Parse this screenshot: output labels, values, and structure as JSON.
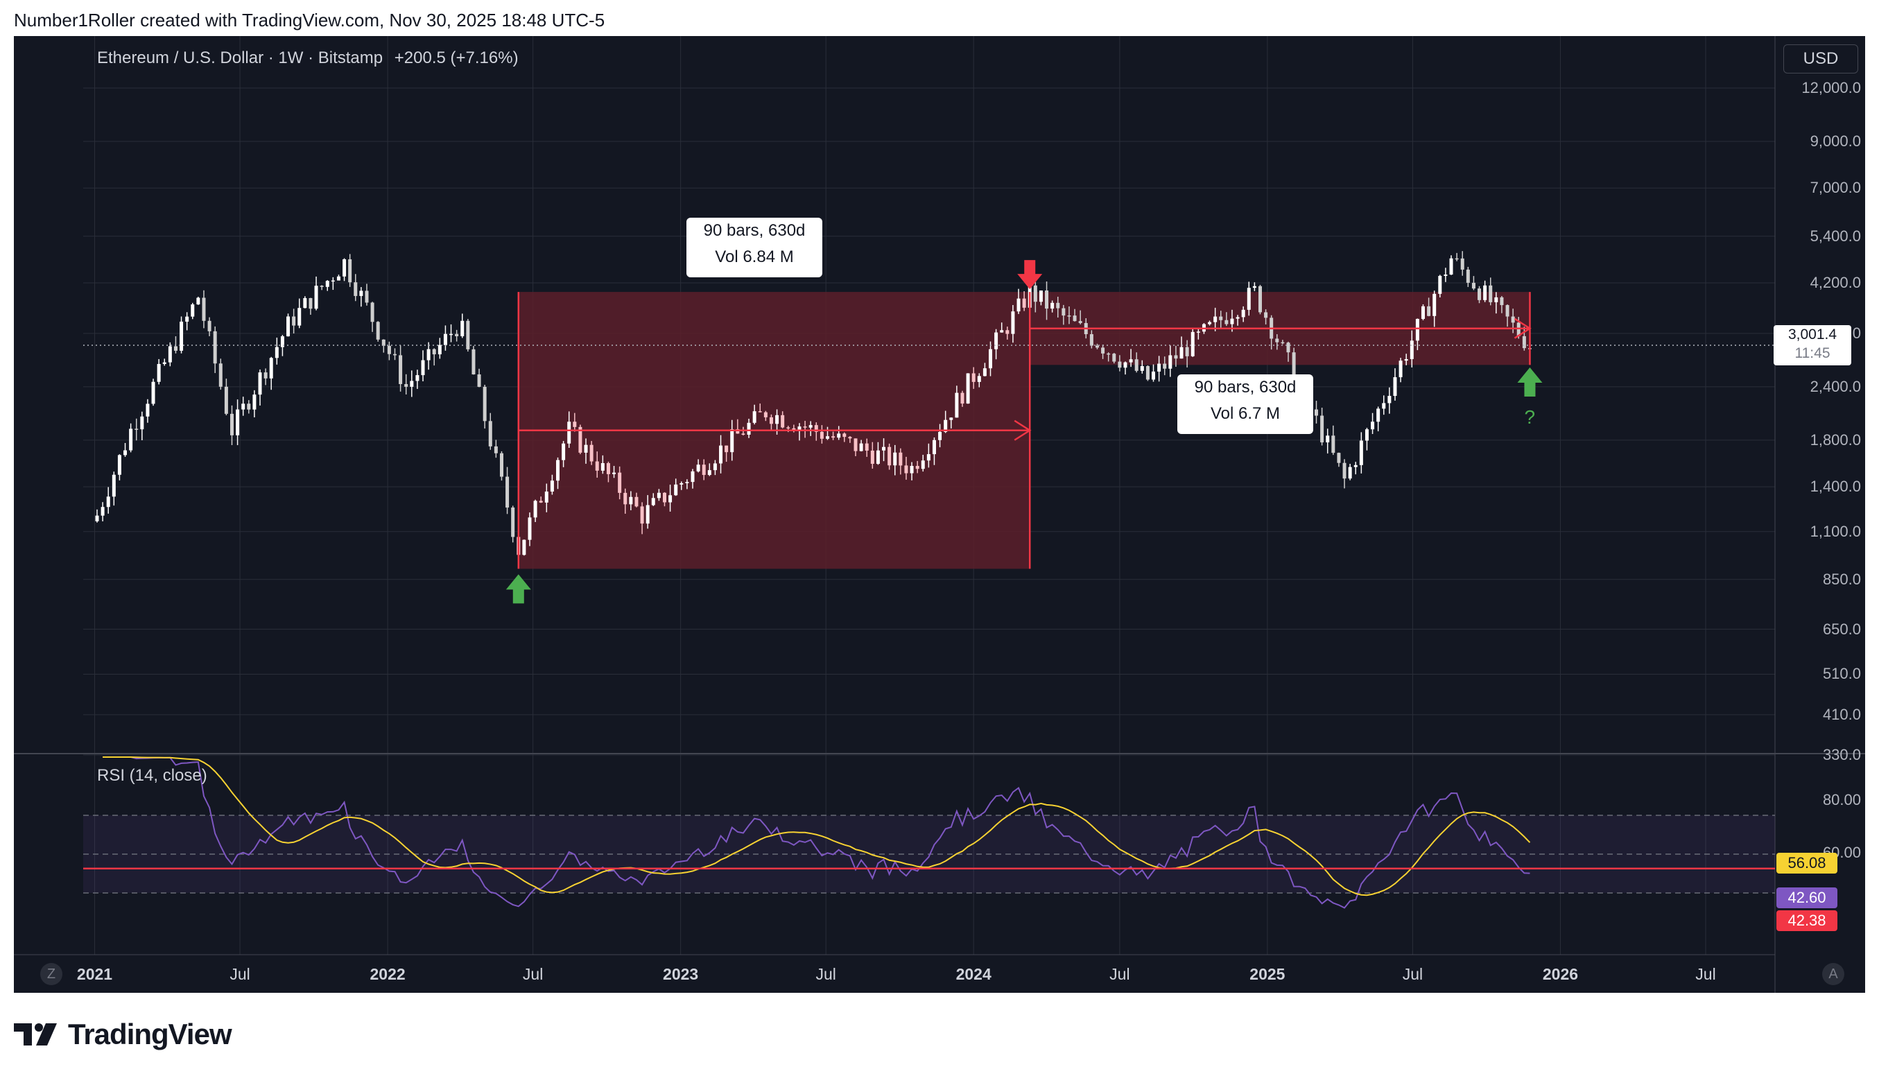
{
  "header": {
    "caption": "Number1Roller created with TradingView.com, Nov 30, 2025 18:48 UTC-5"
  },
  "legend": {
    "symbol": "Ethereum / U.S. Dollar · 1W · Bitstamp",
    "change": "+200.5 (+7.16%)"
  },
  "currency_button": "USD",
  "price_axis": [
    "12,000.0",
    "9,000.0",
    "7,000.0",
    "5,400.0",
    "4,200.0",
    "3,200.0",
    "2,400.0",
    "1,800.0",
    "1,400.0",
    "1,100.0",
    "850.0",
    "650.0",
    "510.0",
    "410.0",
    "330.0"
  ],
  "price_tag": {
    "price": "3,001.4",
    "countdown": "11:45"
  },
  "time_axis": [
    {
      "label": "2021",
      "bold": true
    },
    {
      "label": "Jul",
      "bold": false
    },
    {
      "label": "2022",
      "bold": true
    },
    {
      "label": "Jul",
      "bold": false
    },
    {
      "label": "2023",
      "bold": true
    },
    {
      "label": "Jul",
      "bold": false
    },
    {
      "label": "2024",
      "bold": true
    },
    {
      "label": "Jul",
      "bold": false
    },
    {
      "label": "2025",
      "bold": true
    },
    {
      "label": "Jul",
      "bold": false
    },
    {
      "label": "2026",
      "bold": true
    },
    {
      "label": "Jul",
      "bold": false
    }
  ],
  "measure_boxes": [
    {
      "bars": "90 bars, 630d",
      "vol": "Vol 6.84 M"
    },
    {
      "bars": "90 bars, 630d",
      "vol": "Vol 6.7 M"
    }
  ],
  "question_mark": "?",
  "rsi": {
    "label": "RSI (14, close)",
    "axis": [
      "80.00",
      "60.00"
    ],
    "tags": [
      {
        "value": "56.08",
        "color": "#f7d232",
        "text_color": "#131722"
      },
      {
        "value": "42.60",
        "color": "#7e57c2",
        "text_color": "#ffffff"
      },
      {
        "value": "42.38",
        "color": "#f23645",
        "text_color": "#ffffff"
      }
    ]
  },
  "bottom_buttons": {
    "left": "Z",
    "right": "A"
  },
  "colors": {
    "background": "#131722",
    "zone": "#5c1f2a",
    "red": "#f23645",
    "green": "#4caf50",
    "rsi_line": "#7e57c2",
    "rsi_ma": "#f7d232"
  },
  "branding": "TradingView",
  "chart_data": {
    "type": "candlestick",
    "title": "Ethereum / U.S. Dollar · 1W · Bitstamp",
    "y_scale": "log",
    "ylim": [
      330,
      12000
    ],
    "weekly_close_path": [
      {
        "date": "2021-01-04",
        "close": 1200
      },
      {
        "date": "2021-02-15",
        "close": 1900
      },
      {
        "date": "2021-05-10",
        "close": 3900
      },
      {
        "date": "2021-06-21",
        "close": 1900
      },
      {
        "date": "2021-09-01",
        "close": 3400
      },
      {
        "date": "2021-11-08",
        "close": 4700
      },
      {
        "date": "2022-01-24",
        "close": 2400
      },
      {
        "date": "2022-04-01",
        "close": 3400
      },
      {
        "date": "2022-06-13",
        "close": 1000
      },
      {
        "date": "2022-08-15",
        "close": 1900
      },
      {
        "date": "2022-11-14",
        "close": 1200
      },
      {
        "date": "2023-04-17",
        "close": 2100
      },
      {
        "date": "2023-10-16",
        "close": 1550
      },
      {
        "date": "2024-03-11",
        "close": 4000
      },
      {
        "date": "2024-08-05",
        "close": 2500
      },
      {
        "date": "2024-12-16",
        "close": 4000
      },
      {
        "date": "2025-04-07",
        "close": 1450
      },
      {
        "date": "2025-08-18",
        "close": 4800
      },
      {
        "date": "2025-11-24",
        "close": 3001.4
      }
    ],
    "annotations": [
      {
        "type": "range",
        "bars": 90,
        "days": 630,
        "volume": "6.84 M",
        "price_from": 900,
        "price_to": 4000
      },
      {
        "type": "range",
        "bars": 90,
        "days": 630,
        "volume": "6.7 M",
        "price_from": 2700,
        "price_to": 4000
      }
    ],
    "rsi_period": 14,
    "rsi_last": 42.6,
    "rsi_ma_last": 56.08
  }
}
